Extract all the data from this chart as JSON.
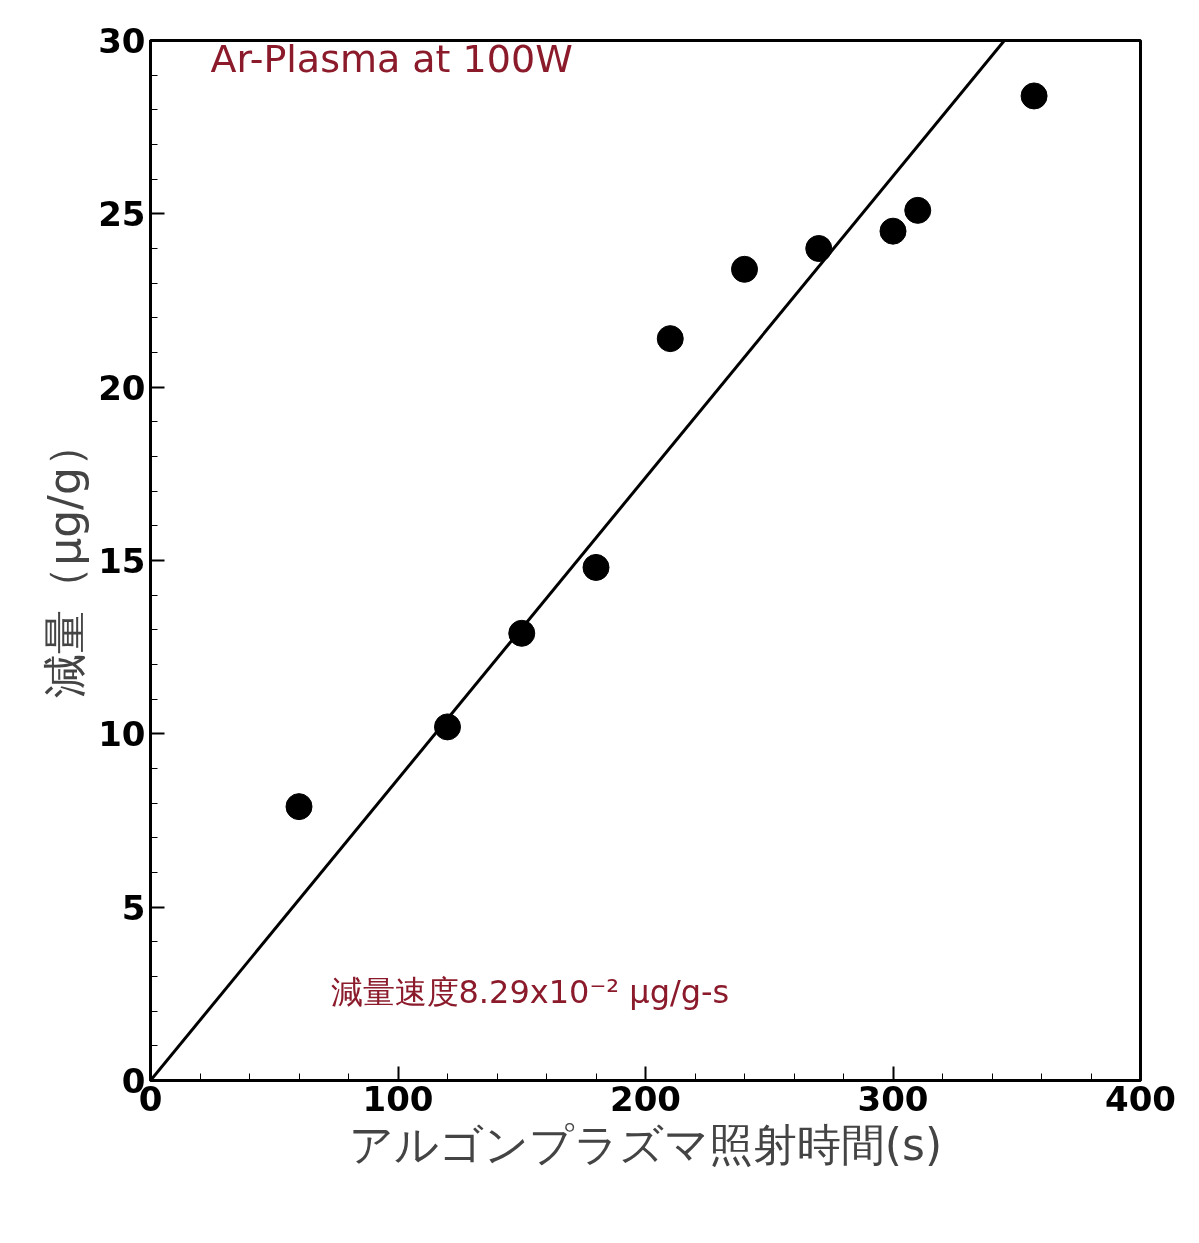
{
  "chart_data": {
    "type": "scatter",
    "xlabel": "アルゴンプラズマ照射時間(s)",
    "ylabel": "減量（μg/g）",
    "xlim": [
      0,
      400
    ],
    "xticks": [
      0,
      100,
      200,
      300,
      400
    ],
    "ylim": [
      0,
      30
    ],
    "yticks": [
      0,
      5,
      10,
      15,
      20,
      25,
      30
    ],
    "grid": false,
    "series": [
      {
        "color": "#000000",
        "marker": "circle",
        "x": [
          60,
          120,
          150,
          180,
          210,
          240,
          270,
          300,
          310,
          357
        ],
        "values": [
          7.9,
          10.2,
          12.9,
          14.8,
          21.4,
          23.4,
          24.0,
          24.5,
          25.1,
          28.4
        ]
      },
      {
        "type": "line",
        "color": "#000000",
        "x": [
          0,
          345
        ],
        "values": [
          0,
          30
        ],
        "line_style": "solid"
      }
    ],
    "annotations": [
      "Ar-Plasma at 100W",
      "減量速度8.29x10⁻² μg/g-s"
    ]
  }
}
